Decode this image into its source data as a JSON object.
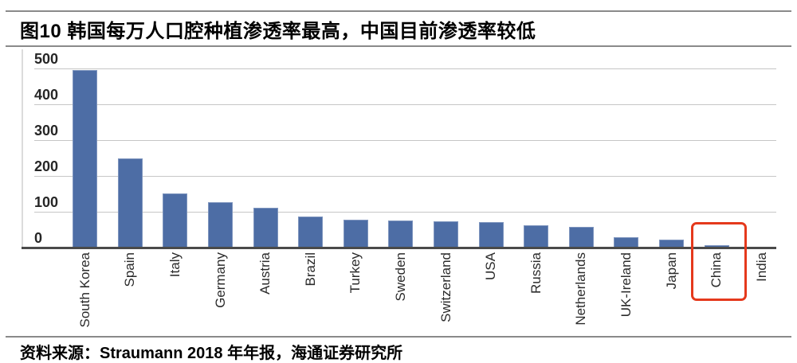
{
  "header": {
    "title": "图10 韩国每万人口腔种植渗透率最高，中国目前渗透率较低"
  },
  "footer": {
    "source": "资料来源：Straumann 2018 年年报，海通证券研究所"
  },
  "chart_data": {
    "type": "bar",
    "title": "韩国每万人口腔种植渗透率最高，中国目前渗透率较低",
    "categories": [
      "South Korea",
      "Spain",
      "Italy",
      "Germany",
      "Austria",
      "Brazil",
      "Turkey",
      "Sweden",
      "Switzerland",
      "USA",
      "Russia",
      "Netherlands",
      "UK-Ireland",
      "Japan",
      "China",
      "India"
    ],
    "values": [
      497,
      250,
      152,
      127,
      112,
      88,
      78,
      77,
      74,
      73,
      64,
      58,
      31,
      23,
      7,
      2
    ],
    "xlabel": "",
    "ylabel": "",
    "ylim": [
      0,
      500
    ],
    "yticks": [
      0,
      100,
      200,
      300,
      400,
      500
    ],
    "grid": true,
    "legend": "none",
    "bar_color": "#4d6da5",
    "grid_color": "#c6c6c6",
    "axis_color": "#4a4a4a",
    "highlight": {
      "category": "China",
      "box_color": "#e5391c"
    }
  }
}
